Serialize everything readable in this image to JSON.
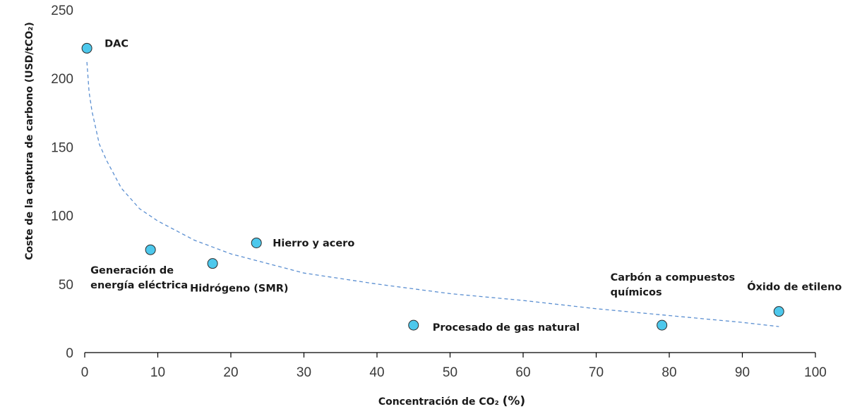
{
  "chart_data": {
    "type": "scatter",
    "title": "",
    "xlabel": "Concentración de CO₂",
    "xlabel_unit": "(%)",
    "ylabel": "Coste de la captura de carbono (USD/tCO₂)",
    "xlim": [
      0,
      100
    ],
    "ylim": [
      0,
      250
    ],
    "x_ticks": [
      0,
      10,
      20,
      30,
      40,
      50,
      60,
      70,
      80,
      90,
      100
    ],
    "y_ticks": [
      0,
      50,
      100,
      150,
      200,
      250
    ],
    "grid": false,
    "point_color": "#4dc8ec",
    "trend_color": "#5b8fd1",
    "points": [
      {
        "label_lines": [
          "DAC"
        ],
        "x": 0.3,
        "y": 222
      },
      {
        "label_lines": [
          "Generación de",
          "energía eléctrica"
        ],
        "x": 9,
        "y": 75
      },
      {
        "label_lines": [
          "Hidrógeno (SMR)"
        ],
        "x": 17.5,
        "y": 65
      },
      {
        "label_lines": [
          "Hierro y acero"
        ],
        "x": 23.5,
        "y": 80
      },
      {
        "label_lines": [
          "Procesado de gas natural"
        ],
        "x": 45,
        "y": 20
      },
      {
        "label_lines": [
          "Carbón a compuestos",
          "químicos"
        ],
        "x": 79,
        "y": 20
      },
      {
        "label_lines": [
          "Óxido de etileno"
        ],
        "x": 95,
        "y": 30
      }
    ],
    "trendline": {
      "type": "power",
      "x": [
        0.3,
        0.6,
        1,
        2,
        3,
        5,
        7.5,
        10,
        15,
        20,
        30,
        40,
        50,
        60,
        70,
        80,
        90,
        95
      ],
      "y": [
        212,
        190,
        176,
        152,
        140,
        120,
        105,
        96,
        82,
        72,
        58,
        50,
        43,
        38,
        32,
        27,
        22,
        19
      ]
    }
  }
}
